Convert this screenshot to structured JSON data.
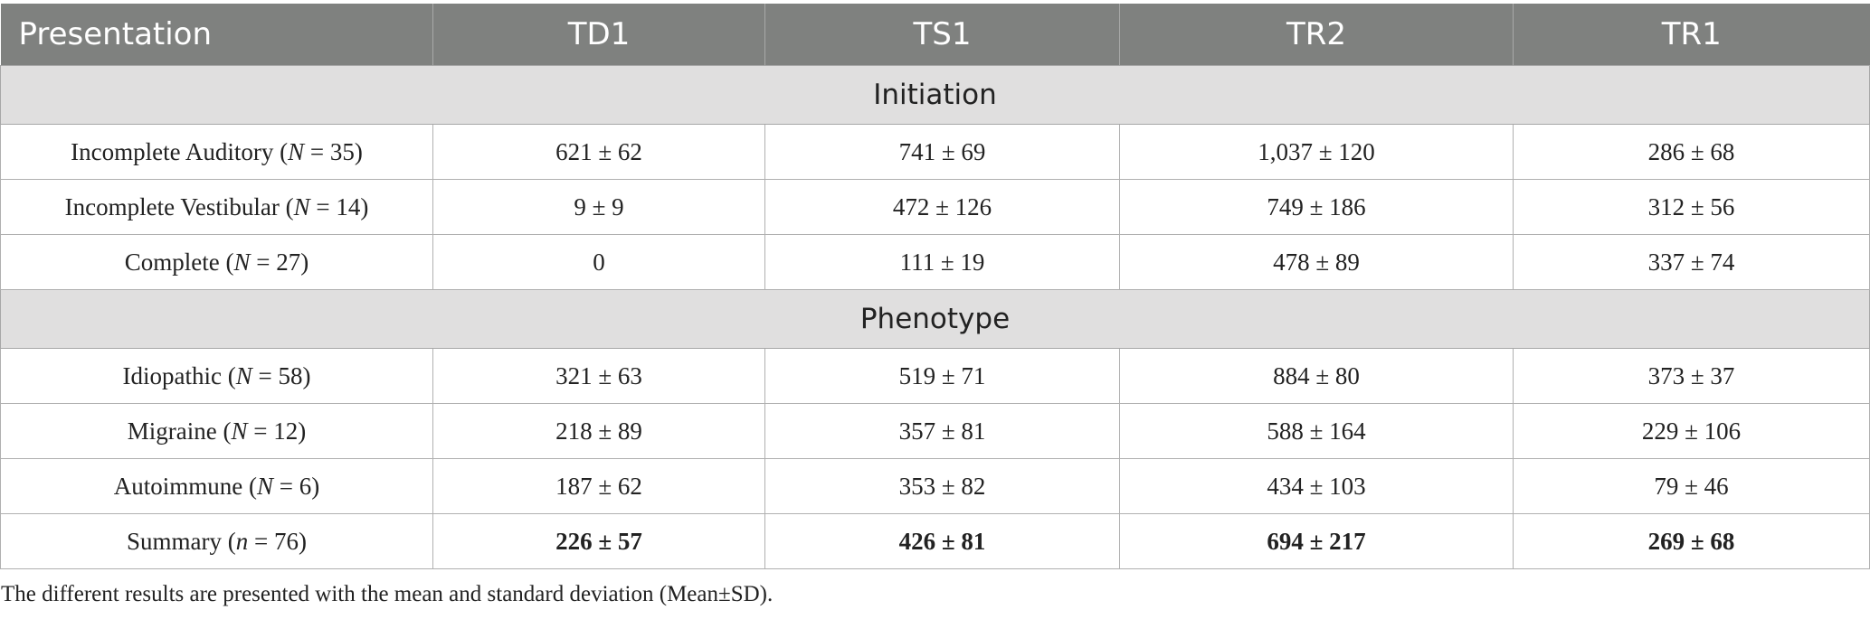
{
  "table": {
    "headers": [
      "Presentation",
      "TD1",
      "TS1",
      "TR2",
      "TR1"
    ],
    "sections": [
      {
        "title": "Initiation",
        "rows": [
          {
            "label": "Incomplete Auditory",
            "n_sym": "N",
            "n": "35",
            "cells": [
              "621 ± 62",
              "741 ± 69",
              "1,037 ± 120",
              "286 ± 68"
            ]
          },
          {
            "label": "Incomplete Vestibular",
            "n_sym": "N",
            "n": "14",
            "cells": [
              "9 ± 9",
              "472 ± 126",
              "749 ± 186",
              "312 ± 56"
            ]
          },
          {
            "label": "Complete",
            "n_sym": "N",
            "n": "27",
            "cells": [
              "0",
              "111 ± 19",
              "478 ± 89",
              "337 ± 74"
            ]
          }
        ]
      },
      {
        "title": "Phenotype",
        "rows": [
          {
            "label": "Idiopathic",
            "n_sym": "N",
            "n": "58",
            "cells": [
              "321 ± 63",
              "519 ± 71",
              "884 ± 80",
              "373 ± 37"
            ]
          },
          {
            "label": "Migraine",
            "n_sym": "N",
            "n": "12",
            "cells": [
              "218 ± 89",
              "357 ± 81",
              "588 ± 164",
              "229 ± 106"
            ]
          },
          {
            "label": "Autoimmune",
            "n_sym": "N",
            "n": "6",
            "cells": [
              "187 ± 62",
              "353 ± 82",
              "434 ± 103",
              "79 ± 46"
            ]
          }
        ]
      }
    ],
    "summary": {
      "label": "Summary",
      "n_sym": "n",
      "n": "76",
      "cells": [
        "226 ± 57",
        "426 ± 81",
        "694 ± 217",
        "269 ± 68"
      ]
    }
  },
  "footnote": "The different results are presented with the mean and standard deviation (Mean±SD)."
}
